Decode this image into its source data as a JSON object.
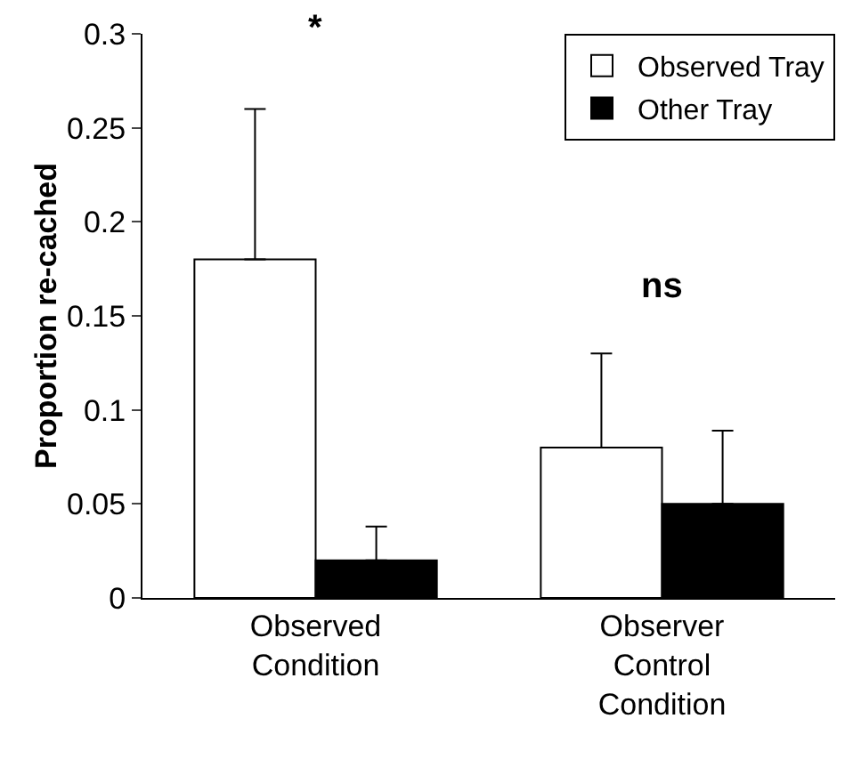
{
  "chart_data": {
    "type": "bar",
    "ylabel": "Proportion re-cached",
    "categories": [
      "Observed\nCondition",
      "Observer\nControl\nCondition"
    ],
    "series": [
      {
        "name": "Observed Tray",
        "color": "#ffffff",
        "values": [
          0.18,
          0.08
        ],
        "errors": [
          [
            0.18,
            0.26
          ],
          [
            0.08,
            0.13
          ]
        ]
      },
      {
        "name": "Other Tray",
        "color": "#000000",
        "values": [
          0.02,
          0.05
        ],
        "errors": [
          [
            0.02,
            0.038
          ],
          [
            0.05,
            0.089
          ]
        ]
      }
    ],
    "ylim": [
      0,
      0.3
    ],
    "yticks": [
      0,
      0.05,
      0.1,
      0.15,
      0.2,
      0.25,
      0.3
    ],
    "grid": false,
    "legend": "top right",
    "annotations": [
      "*",
      "ns"
    ]
  }
}
